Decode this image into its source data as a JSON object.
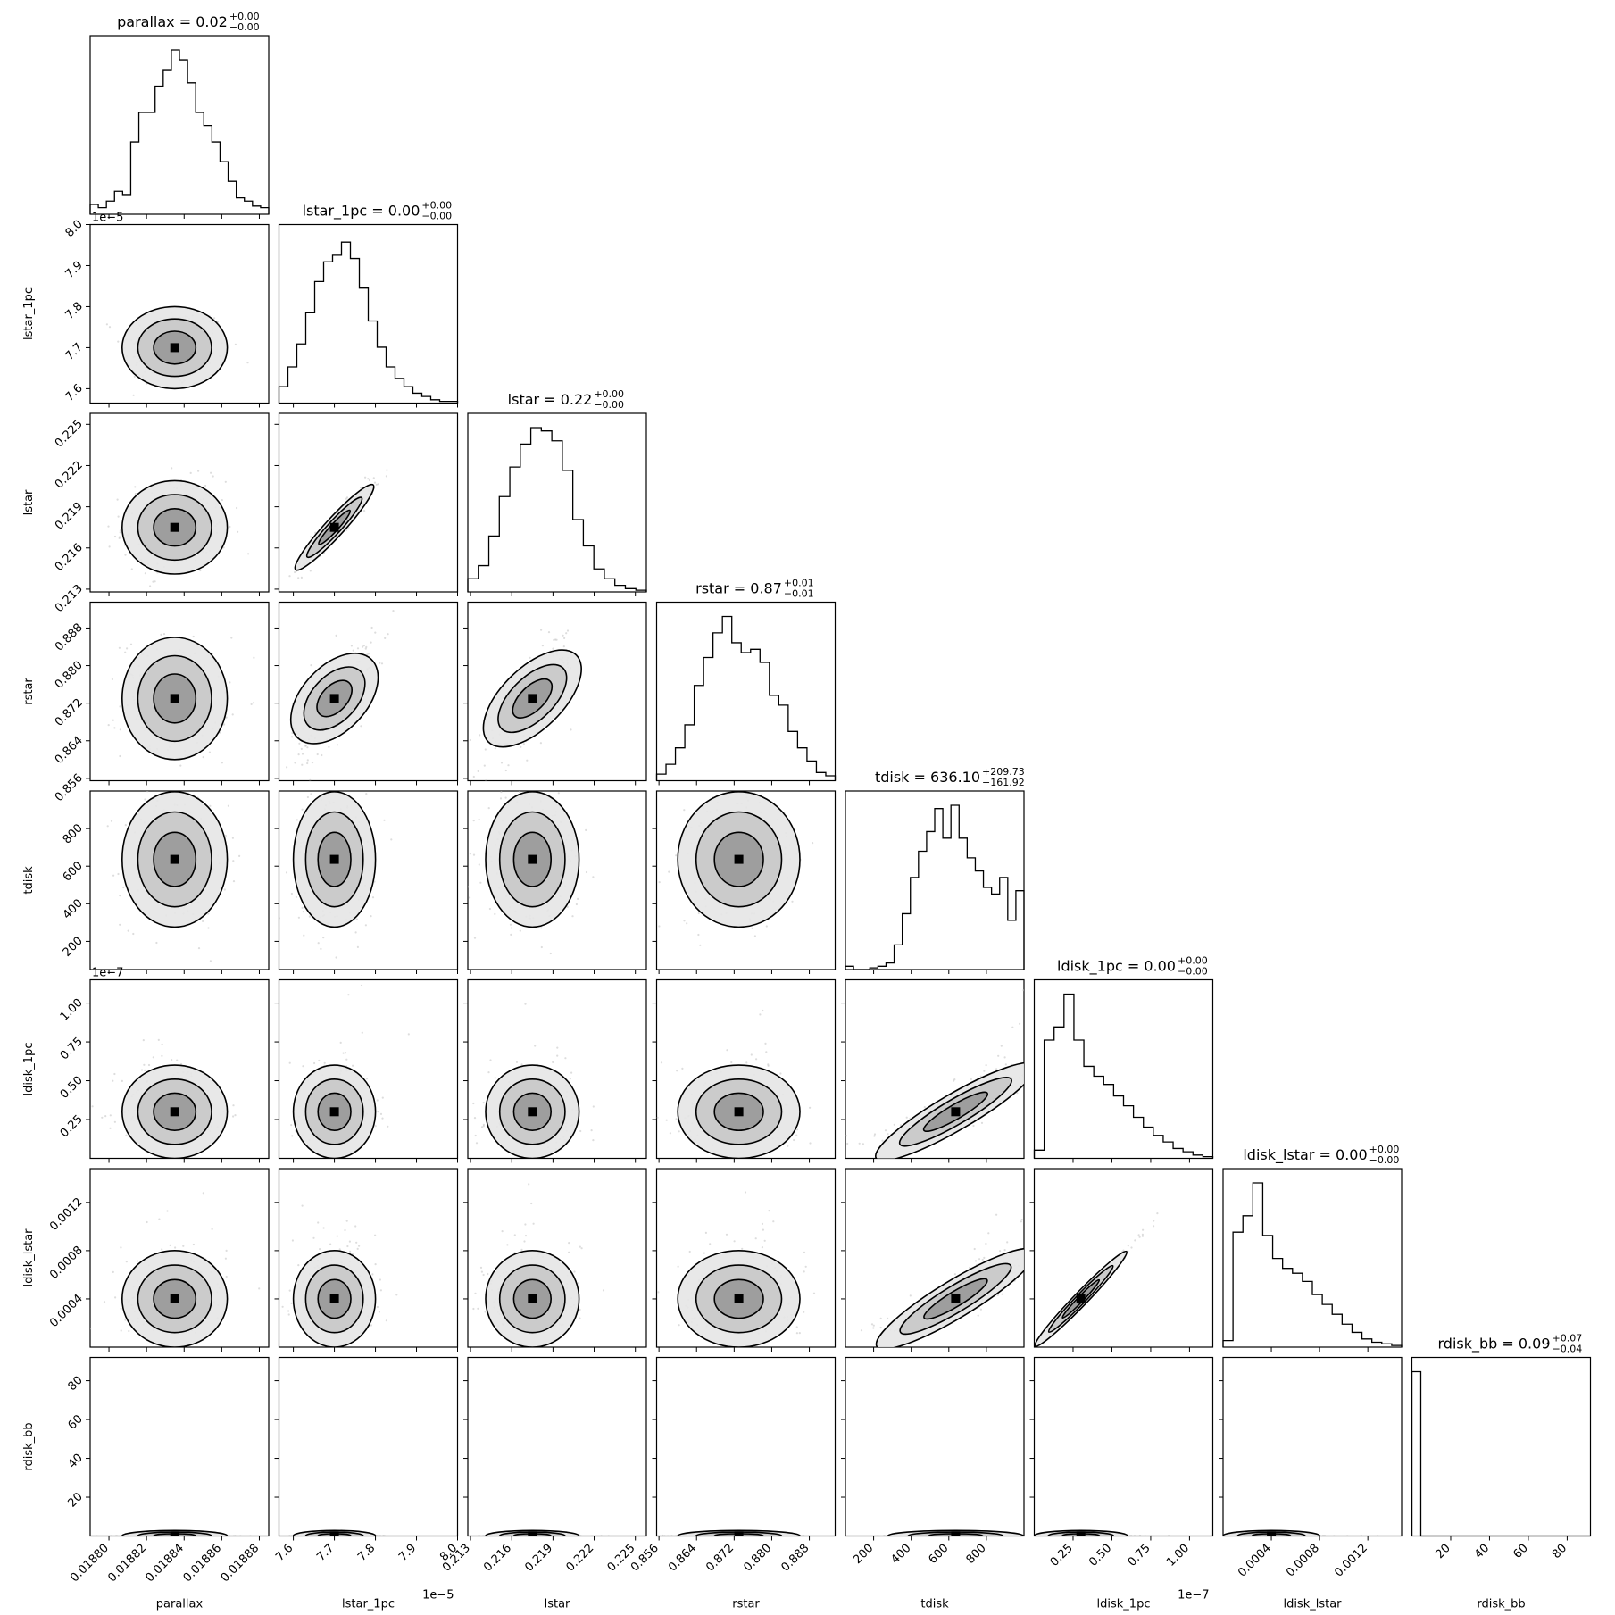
{
  "chart_data": {
    "type": "corner",
    "params": [
      {
        "key": "parallax",
        "label": "parallax",
        "center": 0.018835,
        "sd": 1.4e-05,
        "range": [
          0.01879,
          0.018885
        ],
        "ticks": [
          0.0188,
          0.01882,
          0.01884,
          0.01886,
          0.01888
        ],
        "tick_labels": [
          "0.01880",
          "0.01882",
          "0.01884",
          "0.01886",
          "0.01888"
        ],
        "title_value": "0.02",
        "title_plus": "+0.00",
        "title_minus": "−0.00",
        "offset": ""
      },
      {
        "key": "lstar_1pc",
        "label": "lstar_1pc",
        "center": 7.7,
        "sd": 0.05,
        "range": [
          7.565,
          8.0
        ],
        "ticks": [
          7.6,
          7.7,
          7.8,
          7.9,
          8.0
        ],
        "tick_labels": [
          "7.6",
          "7.7",
          "7.8",
          "7.9",
          "8.0"
        ],
        "title_value": "0.00",
        "title_plus": "+0.00",
        "title_minus": "−0.00",
        "offset": "1e−5"
      },
      {
        "key": "lstar",
        "label": "lstar",
        "center": 0.2175,
        "sd": 0.0017,
        "range": [
          0.2128,
          0.2258
        ],
        "ticks": [
          0.213,
          0.216,
          0.219,
          0.222,
          0.225
        ],
        "tick_labels": [
          "0.213",
          "0.216",
          "0.219",
          "0.222",
          "0.225"
        ],
        "title_value": "0.22",
        "title_plus": "+0.00",
        "title_minus": "−0.00",
        "offset": ""
      },
      {
        "key": "rstar",
        "label": "rstar",
        "center": 0.873,
        "sd": 0.0065,
        "range": [
          0.8555,
          0.8935
        ],
        "ticks": [
          0.856,
          0.864,
          0.872,
          0.88,
          0.888
        ],
        "tick_labels": [
          "0.856",
          "0.864",
          "0.872",
          "0.880",
          "0.888"
        ],
        "title_value": "0.87",
        "title_plus": "+0.01",
        "title_minus": "−0.01",
        "offset": ""
      },
      {
        "key": "tdisk",
        "label": "tdisk",
        "center": 636.1,
        "sd": 180,
        "range": [
          50,
          1000
        ],
        "ticks": [
          200,
          400,
          600,
          800
        ],
        "tick_labels": [
          "200",
          "400",
          "600",
          "800"
        ],
        "title_value": "636.10",
        "title_plus": "+209.73",
        "title_minus": "−161.92",
        "offset": ""
      },
      {
        "key": "ldisk_1pc",
        "label": "ldisk_1pc",
        "center": 0.3,
        "sd": 0.15,
        "range": [
          0.0,
          1.15
        ],
        "ticks": [
          0.25,
          0.5,
          0.75,
          1.0
        ],
        "tick_labels": [
          "0.25",
          "0.50",
          "0.75",
          "1.00"
        ],
        "title_value": "0.00",
        "title_plus": "+0.00",
        "title_minus": "−0.00",
        "offset": "1e−7"
      },
      {
        "key": "ldisk_lstar",
        "label": "ldisk_lstar",
        "center": 0.0004,
        "sd": 0.0002,
        "range": [
          0.0,
          0.00148
        ],
        "ticks": [
          0.0004,
          0.0008,
          0.0012
        ],
        "tick_labels": [
          "0.0004",
          "0.0008",
          "0.0012"
        ],
        "title_value": "0.00",
        "title_plus": "+0.00",
        "title_minus": "−0.00",
        "offset": ""
      },
      {
        "key": "rdisk_bb",
        "label": "rdisk_bb",
        "center": 0.09,
        "sd": 0.06,
        "range": [
          0.0,
          92
        ],
        "ticks": [
          20,
          40,
          60,
          80
        ],
        "tick_labels": [
          "20",
          "40",
          "60",
          "80"
        ],
        "title_value": "0.09",
        "title_plus": "+0.07",
        "title_minus": "−0.04",
        "offset": ""
      }
    ],
    "histograms": {
      "parallax": [
        0.06,
        0.04,
        0.08,
        0.14,
        0.12,
        0.44,
        0.62,
        0.62,
        0.78,
        0.88,
        1.0,
        0.94,
        0.8,
        0.62,
        0.54,
        0.44,
        0.32,
        0.2,
        0.1,
        0.08,
        0.05,
        0.04
      ],
      "lstar_1pc": [
        0.1,
        0.22,
        0.36,
        0.55,
        0.74,
        0.86,
        0.9,
        0.98,
        0.88,
        0.7,
        0.5,
        0.34,
        0.22,
        0.15,
        0.1,
        0.06,
        0.04,
        0.02,
        0.01,
        0.01
      ],
      "lstar": [
        0.08,
        0.16,
        0.34,
        0.58,
        0.76,
        0.9,
        1.0,
        0.98,
        0.92,
        0.74,
        0.44,
        0.28,
        0.14,
        0.08,
        0.04,
        0.02,
        0.01
      ],
      "rstar": [
        0.04,
        0.1,
        0.2,
        0.34,
        0.58,
        0.75,
        0.9,
        1.0,
        0.84,
        0.78,
        0.8,
        0.72,
        0.52,
        0.46,
        0.3,
        0.2,
        0.12,
        0.05,
        0.03
      ],
      "tdisk": [
        0.02,
        0.0,
        0.0,
        0.01,
        0.02,
        0.04,
        0.15,
        0.34,
        0.56,
        0.72,
        0.84,
        0.98,
        0.8,
        1.0,
        0.8,
        0.68,
        0.6,
        0.5,
        0.46,
        0.56,
        0.3,
        0.48
      ],
      "ldisk_1pc": [
        0.05,
        0.72,
        0.8,
        1.0,
        0.72,
        0.56,
        0.5,
        0.45,
        0.38,
        0.32,
        0.25,
        0.19,
        0.14,
        0.1,
        0.06,
        0.04,
        0.02,
        0.01
      ],
      "ldisk_lstar": [
        0.04,
        0.7,
        0.8,
        1.0,
        0.68,
        0.54,
        0.48,
        0.45,
        0.4,
        0.32,
        0.26,
        0.2,
        0.14,
        0.09,
        0.05,
        0.03,
        0.02,
        0.01
      ],
      "rdisk_bb": [
        1.0,
        0.0,
        0.0,
        0.0,
        0.0,
        0.0,
        0.0,
        0.0,
        0.0,
        0.0,
        0.0,
        0.0,
        0.0,
        0.0,
        0.0,
        0.0,
        0.0,
        0.0,
        0.0,
        0.0
      ]
    },
    "correlations": {
      "lstar_1pc|lstar": 0.96,
      "lstar_1pc|rstar": 0.72,
      "lstar|rstar": 0.75,
      "tdisk|ldisk_1pc": 0.85,
      "tdisk|ldisk_lstar": 0.85,
      "ldisk_1pc|ldisk_lstar": 0.998
    },
    "title_format": "{label} = {value}"
  }
}
